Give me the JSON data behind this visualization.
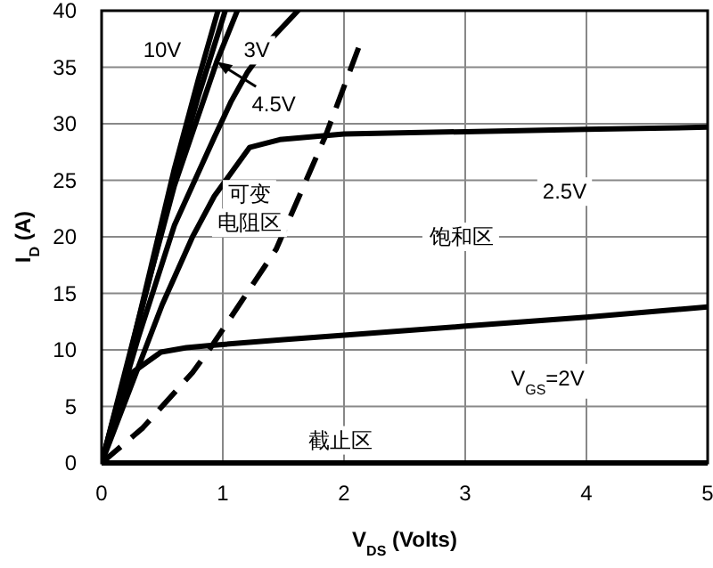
{
  "chart_data": {
    "type": "line",
    "xlabel": "V$_{DS}$ (Volts)",
    "ylabel": "I$_{D}$ (A)",
    "xlim": [
      0,
      5
    ],
    "ylim": [
      0,
      40
    ],
    "xticks": [
      0,
      1,
      2,
      3,
      4,
      5
    ],
    "yticks": [
      0,
      5,
      10,
      15,
      20,
      25,
      30,
      35,
      40
    ],
    "grid": true,
    "marker": "none",
    "series": [
      {
        "color": "#000000",
        "x": [
          0,
          0.2,
          0.4,
          0.6,
          0.8,
          0.96
        ],
        "values": [
          0,
          8,
          17,
          26,
          34,
          40
        ]
      },
      {
        "color": "#000000",
        "x": [
          0,
          0.2,
          0.4,
          0.6,
          0.8,
          1.02
        ],
        "values": [
          0,
          8,
          16.5,
          25,
          32.5,
          40
        ]
      },
      {
        "color": "#000000",
        "x": [
          0,
          0.3,
          0.6,
          0.95,
          1.12
        ],
        "values": [
          0,
          12.5,
          24.5,
          35.5,
          40
        ]
      },
      {
        "color": "#000000",
        "x": [
          0,
          0.3,
          0.6,
          0.93,
          1.07,
          1.2,
          1.4,
          1.62
        ],
        "values": [
          0,
          11,
          21,
          28.8,
          32,
          34.5,
          37.5,
          40
        ]
      },
      {
        "color": "#000000",
        "x": [
          0,
          0.25,
          0.5,
          0.75,
          0.93,
          1.22,
          1.47,
          2,
          3,
          4,
          5
        ],
        "values": [
          0,
          7,
          14,
          20,
          23.6,
          27.9,
          28.6,
          29.1,
          29.3,
          29.5,
          29.7
        ]
      },
      {
        "color": "#000000",
        "x": [
          0,
          0.1,
          0.24,
          0.49,
          0.7,
          0.9,
          1.5,
          2,
          3,
          4,
          5
        ],
        "values": [
          0,
          3.5,
          7.9,
          9.8,
          10.2,
          10.4,
          10.9,
          11.3,
          12.1,
          12.9,
          13.8
        ]
      },
      {
        "color": "#000000",
        "line_style": "dashed",
        "x": [
          0,
          0.34,
          0.75,
          0.9,
          1.44,
          1.85,
          2.13
        ],
        "values": [
          0,
          3.1,
          8,
          10.2,
          18.9,
          29,
          37
        ]
      }
    ],
    "annotations": [
      {
        "text": "10V",
        "x": 0.5,
        "y": 36.5
      },
      {
        "text": "4.5V",
        "x": 0.95,
        "y": 35.5
      },
      {
        "text": "3V",
        "x": 1.28,
        "y": 36.5
      },
      {
        "text": "2.5V",
        "x": 3.82,
        "y": 24
      },
      "可变电阻区",
      "饱和区",
      "V$_{GS}$=2V",
      "截止区"
    ]
  }
}
